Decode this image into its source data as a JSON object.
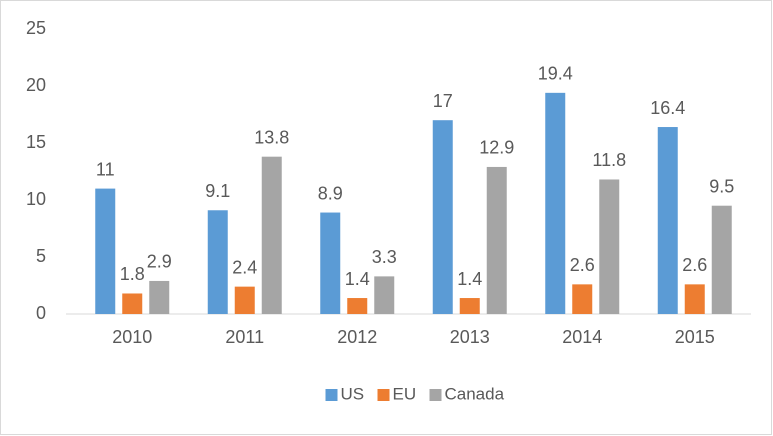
{
  "chart_data": {
    "type": "bar",
    "categories": [
      "2010",
      "2011",
      "2012",
      "2013",
      "2014",
      "2015"
    ],
    "series": [
      {
        "name": "US",
        "color": "#5b9bd5",
        "values": [
          11,
          9.1,
          8.9,
          17,
          19.4,
          16.4
        ]
      },
      {
        "name": "EU",
        "color": "#ed7d31",
        "values": [
          1.8,
          2.4,
          1.4,
          1.4,
          2.6,
          2.6
        ]
      },
      {
        "name": "Canada",
        "color": "#a5a5a5",
        "values": [
          2.9,
          13.8,
          3.3,
          12.9,
          11.8,
          9.5
        ]
      }
    ],
    "ylim": [
      0,
      25
    ],
    "yticks": [
      0,
      5,
      10,
      15,
      20,
      25
    ],
    "grid": false,
    "legend": "bottom"
  }
}
